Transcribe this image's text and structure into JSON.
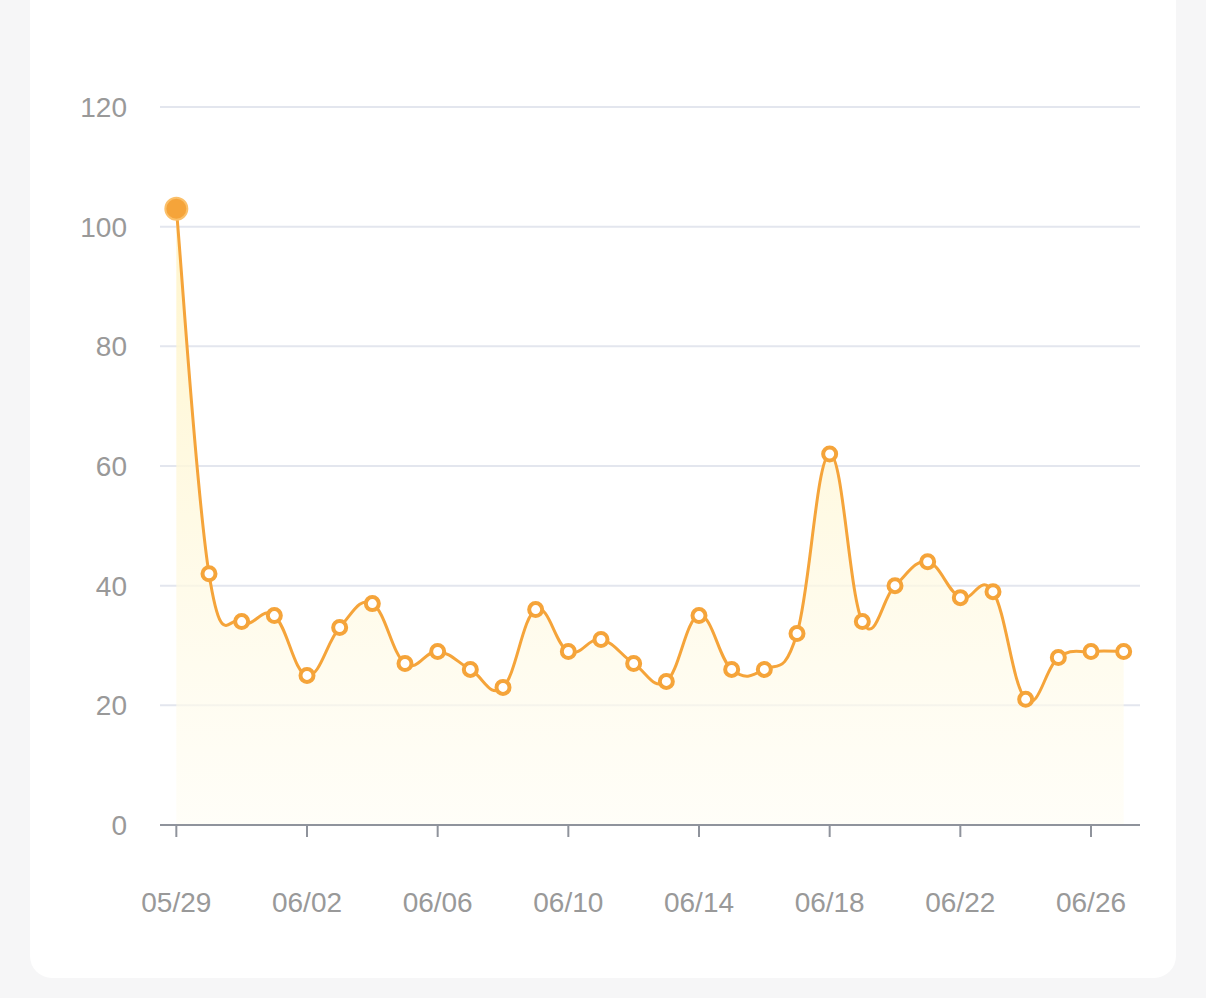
{
  "chart_data": {
    "type": "line",
    "categories": [
      "05/29",
      null,
      null,
      null,
      "06/02",
      null,
      null,
      null,
      "06/06",
      null,
      null,
      null,
      "06/10",
      null,
      null,
      null,
      "06/14",
      null,
      null,
      null,
      "06/18",
      null,
      null,
      null,
      "06/22",
      null,
      null,
      null,
      "06/26",
      null
    ],
    "values": [
      103,
      42,
      34,
      35,
      25,
      33,
      37,
      27,
      29,
      26,
      23,
      36,
      29,
      31,
      27,
      24,
      35,
      26,
      26,
      32,
      62,
      34,
      40,
      44,
      38,
      39,
      21,
      28,
      29,
      29
    ],
    "color": "#f5a43a",
    "marker": "circle",
    "ylim": [
      0,
      120
    ],
    "yticks": [
      0,
      20,
      40,
      60,
      80,
      100,
      120
    ],
    "grid": true
  }
}
